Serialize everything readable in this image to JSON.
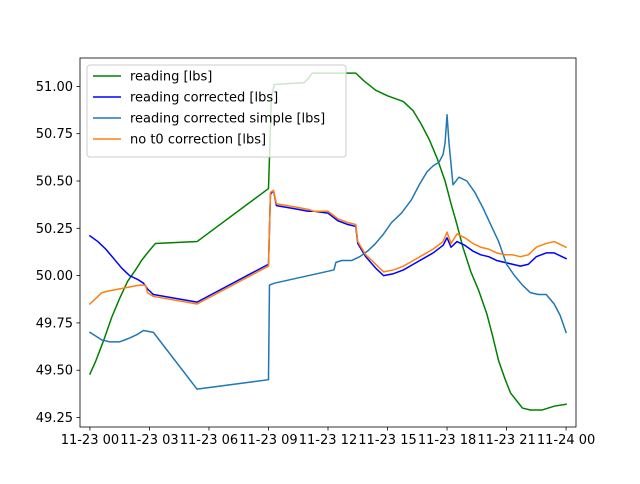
{
  "chart_data": {
    "type": "line",
    "title": "",
    "xlabel": "",
    "ylabel": "",
    "xlim": [
      -0.5,
      24.5
    ],
    "ylim": [
      49.2,
      51.15
    ],
    "x_ticks": [
      {
        "value": 0,
        "label": "11-23 00"
      },
      {
        "value": 3,
        "label": "11-23 03"
      },
      {
        "value": 6,
        "label": "11-23 06"
      },
      {
        "value": 9,
        "label": "11-23 09"
      },
      {
        "value": 12,
        "label": "11-23 12"
      },
      {
        "value": 15,
        "label": "11-23 15"
      },
      {
        "value": 18,
        "label": "11-23 18"
      },
      {
        "value": 21,
        "label": "11-23 21"
      },
      {
        "value": 24,
        "label": "11-24 00"
      }
    ],
    "y_ticks": [
      {
        "value": 49.25,
        "label": "49.25"
      },
      {
        "value": 49.5,
        "label": "49.50"
      },
      {
        "value": 49.75,
        "label": "49.75"
      },
      {
        "value": 50.0,
        "label": "50.00"
      },
      {
        "value": 50.25,
        "label": "50.25"
      },
      {
        "value": 50.5,
        "label": "50.50"
      },
      {
        "value": 50.75,
        "label": "50.75"
      },
      {
        "value": 51.0,
        "label": "51.00"
      }
    ],
    "grid": false,
    "legend_position": "upper-left",
    "series": [
      {
        "name": "reading [lbs]",
        "color": "#008000",
        "points": [
          [
            0,
            49.48
          ],
          [
            0.3,
            49.55
          ],
          [
            0.7,
            49.66
          ],
          [
            1.1,
            49.78
          ],
          [
            1.5,
            49.88
          ],
          [
            1.9,
            49.97
          ],
          [
            2.3,
            50.03
          ],
          [
            2.6,
            50.08
          ],
          [
            2.9,
            50.12
          ],
          [
            3.3,
            50.17
          ],
          [
            5.4,
            50.18
          ],
          [
            9.0,
            50.46
          ],
          [
            9.15,
            50.95
          ],
          [
            9.3,
            51.01
          ],
          [
            10.8,
            51.02
          ],
          [
            11.0,
            51.04
          ],
          [
            11.2,
            51.07
          ],
          [
            13.4,
            51.07
          ],
          [
            13.8,
            51.03
          ],
          [
            14.4,
            50.98
          ],
          [
            15.0,
            50.95
          ],
          [
            15.8,
            50.92
          ],
          [
            16.3,
            50.87
          ],
          [
            16.7,
            50.8
          ],
          [
            17.1,
            50.72
          ],
          [
            17.5,
            50.62
          ],
          [
            17.9,
            50.5
          ],
          [
            18.2,
            50.38
          ],
          [
            18.5,
            50.27
          ],
          [
            18.8,
            50.15
          ],
          [
            19.2,
            50.02
          ],
          [
            19.6,
            49.92
          ],
          [
            20.0,
            49.8
          ],
          [
            20.3,
            49.68
          ],
          [
            20.6,
            49.55
          ],
          [
            20.9,
            49.46
          ],
          [
            21.2,
            49.38
          ],
          [
            21.5,
            49.34
          ],
          [
            21.8,
            49.3
          ],
          [
            22.2,
            49.29
          ],
          [
            22.8,
            49.29
          ],
          [
            23.4,
            49.31
          ],
          [
            24.0,
            49.32
          ]
        ]
      },
      {
        "name": "reading corrected [lbs]",
        "color": "#0000ff",
        "points": [
          [
            0,
            50.21
          ],
          [
            0.4,
            50.18
          ],
          [
            0.8,
            50.14
          ],
          [
            1.2,
            50.09
          ],
          [
            1.6,
            50.04
          ],
          [
            2.0,
            50.0
          ],
          [
            2.4,
            49.98
          ],
          [
            2.7,
            49.96
          ],
          [
            2.9,
            49.93
          ],
          [
            3.2,
            49.9
          ],
          [
            5.4,
            49.86
          ],
          [
            9.0,
            50.06
          ],
          [
            9.1,
            50.43
          ],
          [
            9.25,
            50.45
          ],
          [
            9.4,
            50.37
          ],
          [
            10.5,
            50.35
          ],
          [
            11.0,
            50.34
          ],
          [
            11.3,
            50.34
          ],
          [
            12.0,
            50.33
          ],
          [
            12.5,
            50.29
          ],
          [
            13.0,
            50.27
          ],
          [
            13.4,
            50.26
          ],
          [
            13.5,
            50.17
          ],
          [
            13.9,
            50.1
          ],
          [
            14.4,
            50.04
          ],
          [
            14.8,
            50.0
          ],
          [
            15.3,
            50.01
          ],
          [
            15.8,
            50.03
          ],
          [
            16.3,
            50.06
          ],
          [
            16.8,
            50.09
          ],
          [
            17.3,
            50.12
          ],
          [
            17.8,
            50.16
          ],
          [
            18.0,
            50.2
          ],
          [
            18.2,
            50.15
          ],
          [
            18.5,
            50.18
          ],
          [
            18.9,
            50.16
          ],
          [
            19.3,
            50.13
          ],
          [
            19.7,
            50.11
          ],
          [
            20.1,
            50.1
          ],
          [
            20.5,
            50.08
          ],
          [
            20.9,
            50.07
          ],
          [
            21.3,
            50.06
          ],
          [
            21.7,
            50.05
          ],
          [
            22.1,
            50.06
          ],
          [
            22.5,
            50.1
          ],
          [
            23.0,
            50.12
          ],
          [
            23.4,
            50.12
          ],
          [
            24.0,
            50.09
          ]
        ]
      },
      {
        "name": "reading corrected simple [lbs]",
        "color": "#1f77b4",
        "points": [
          [
            0,
            49.7
          ],
          [
            0.3,
            49.68
          ],
          [
            0.6,
            49.66
          ],
          [
            1.0,
            49.65
          ],
          [
            1.5,
            49.65
          ],
          [
            2.0,
            49.67
          ],
          [
            2.4,
            49.69
          ],
          [
            2.7,
            49.71
          ],
          [
            3.2,
            49.7
          ],
          [
            5.4,
            49.4
          ],
          [
            9.0,
            49.45
          ],
          [
            9.05,
            49.95
          ],
          [
            9.3,
            49.96
          ],
          [
            12.3,
            50.03
          ],
          [
            12.4,
            50.07
          ],
          [
            12.7,
            50.08
          ],
          [
            13.2,
            50.08
          ],
          [
            13.6,
            50.1
          ],
          [
            14.0,
            50.13
          ],
          [
            14.4,
            50.17
          ],
          [
            14.8,
            50.22
          ],
          [
            15.2,
            50.28
          ],
          [
            15.7,
            50.33
          ],
          [
            16.2,
            50.4
          ],
          [
            16.6,
            50.48
          ],
          [
            17.0,
            50.55
          ],
          [
            17.3,
            50.58
          ],
          [
            17.6,
            50.6
          ],
          [
            17.8,
            50.64
          ],
          [
            17.9,
            50.7
          ],
          [
            18.0,
            50.85
          ],
          [
            18.1,
            50.7
          ],
          [
            18.3,
            50.48
          ],
          [
            18.6,
            50.52
          ],
          [
            19.0,
            50.5
          ],
          [
            19.4,
            50.44
          ],
          [
            19.8,
            50.36
          ],
          [
            20.2,
            50.27
          ],
          [
            20.6,
            50.18
          ],
          [
            21.0,
            50.06
          ],
          [
            21.4,
            50.0
          ],
          [
            21.8,
            49.95
          ],
          [
            22.2,
            49.91
          ],
          [
            22.6,
            49.9
          ],
          [
            23.0,
            49.9
          ],
          [
            23.4,
            49.85
          ],
          [
            23.7,
            49.79
          ],
          [
            24.0,
            49.7
          ]
        ]
      },
      {
        "name": "no t0 correction [lbs]",
        "color": "#ff7f0e",
        "points": [
          [
            0,
            49.85
          ],
          [
            0.3,
            49.88
          ],
          [
            0.6,
            49.91
          ],
          [
            1.0,
            49.92
          ],
          [
            1.5,
            49.93
          ],
          [
            2.0,
            49.94
          ],
          [
            2.5,
            49.95
          ],
          [
            2.8,
            49.95
          ],
          [
            2.9,
            49.91
          ],
          [
            3.2,
            49.89
          ],
          [
            5.4,
            49.85
          ],
          [
            9.0,
            50.05
          ],
          [
            9.1,
            50.44
          ],
          [
            9.25,
            50.45
          ],
          [
            9.4,
            50.38
          ],
          [
            10.5,
            50.36
          ],
          [
            11.0,
            50.35
          ],
          [
            11.3,
            50.34
          ],
          [
            12.0,
            50.34
          ],
          [
            12.5,
            50.3
          ],
          [
            13.0,
            50.28
          ],
          [
            13.4,
            50.27
          ],
          [
            13.5,
            50.18
          ],
          [
            13.9,
            50.11
          ],
          [
            14.4,
            50.06
          ],
          [
            14.8,
            50.02
          ],
          [
            15.3,
            50.03
          ],
          [
            15.8,
            50.05
          ],
          [
            16.3,
            50.08
          ],
          [
            16.8,
            50.11
          ],
          [
            17.3,
            50.14
          ],
          [
            17.8,
            50.18
          ],
          [
            18.0,
            50.23
          ],
          [
            18.2,
            50.17
          ],
          [
            18.5,
            50.22
          ],
          [
            18.9,
            50.2
          ],
          [
            19.3,
            50.17
          ],
          [
            19.7,
            50.15
          ],
          [
            20.1,
            50.14
          ],
          [
            20.5,
            50.12
          ],
          [
            20.9,
            50.11
          ],
          [
            21.3,
            50.11
          ],
          [
            21.7,
            50.1
          ],
          [
            22.1,
            50.11
          ],
          [
            22.5,
            50.15
          ],
          [
            23.0,
            50.17
          ],
          [
            23.4,
            50.18
          ],
          [
            24.0,
            50.15
          ]
        ]
      }
    ]
  }
}
